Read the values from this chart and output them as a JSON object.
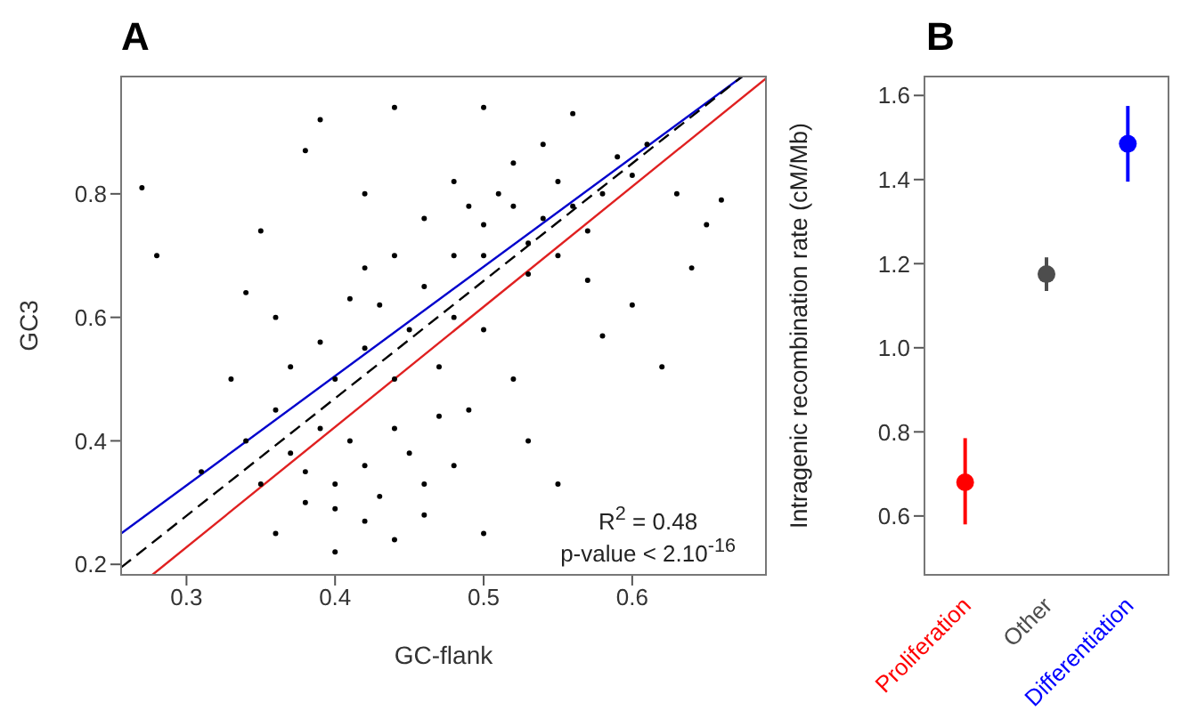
{
  "chart_data": [
    {
      "type": "scatter",
      "title": "A",
      "xlabel": "GC-flank",
      "ylabel": "GC3",
      "xlim": [
        0.256,
        0.69
      ],
      "ylim": [
        0.183,
        0.99
      ],
      "xticks": [
        0.3,
        0.4,
        0.5,
        0.6
      ],
      "yticks": [
        0.2,
        0.4,
        0.6,
        0.8
      ],
      "grid": false,
      "legend": false,
      "marker": "circle",
      "annotations": [
        "R$^{2}$ = 0.48",
        "p-value < 2.10$^{-16}$"
      ],
      "series": [
        {
          "color": "#000000",
          "x": [
            0.38,
            0.4,
            0.42,
            0.41,
            0.39,
            0.43,
            0.4,
            0.37,
            0.36,
            0.44,
            0.45,
            0.38,
            0.42,
            0.46,
            0.35,
            0.4,
            0.42,
            0.44,
            0.45,
            0.47,
            0.43,
            0.46,
            0.48,
            0.5,
            0.39,
            0.37,
            0.41,
            0.49,
            0.52,
            0.47,
            0.48,
            0.44,
            0.42,
            0.5,
            0.52,
            0.54,
            0.53,
            0.51,
            0.55,
            0.56,
            0.5,
            0.53,
            0.57,
            0.49,
            0.58,
            0.55,
            0.52,
            0.48,
            0.59,
            0.6,
            0.57,
            0.54,
            0.46,
            0.27,
            0.28,
            0.34,
            0.35,
            0.33,
            0.34,
            0.31,
            0.36,
            0.4,
            0.44,
            0.5,
            0.55,
            0.58,
            0.62,
            0.63,
            0.65,
            0.66,
            0.64,
            0.61,
            0.56,
            0.5,
            0.44,
            0.39,
            0.38,
            0.42,
            0.36,
            0.6,
            0.53,
            0.48,
            0.46
          ],
          "values": [
            0.35,
            0.33,
            0.36,
            0.4,
            0.42,
            0.31,
            0.29,
            0.38,
            0.45,
            0.42,
            0.38,
            0.3,
            0.27,
            0.33,
            0.33,
            0.5,
            0.55,
            0.5,
            0.58,
            0.52,
            0.62,
            0.65,
            0.6,
            0.58,
            0.56,
            0.52,
            0.63,
            0.45,
            0.5,
            0.44,
            0.7,
            0.7,
            0.68,
            0.75,
            0.78,
            0.76,
            0.72,
            0.8,
            0.82,
            0.78,
            0.7,
            0.67,
            0.74,
            0.78,
            0.8,
            0.7,
            0.85,
            0.82,
            0.86,
            0.83,
            0.66,
            0.88,
            0.76,
            0.81,
            0.7,
            0.64,
            0.74,
            0.5,
            0.4,
            0.35,
            0.25,
            0.22,
            0.24,
            0.25,
            0.33,
            0.57,
            0.52,
            0.8,
            0.75,
            0.79,
            0.68,
            0.88,
            0.93,
            0.94,
            0.94,
            0.92,
            0.87,
            0.8,
            0.6,
            0.62,
            0.4,
            0.36,
            0.28
          ]
        },
        {
          "type": "line",
          "marker": "none",
          "color": "#0000cc",
          "line_style": "solid",
          "x": [
            0.256,
            0.674
          ],
          "values": [
            0.25,
            0.99
          ]
        },
        {
          "type": "line",
          "marker": "none",
          "color": "#000000",
          "line_style": "dashed",
          "x": [
            0.256,
            0.674
          ],
          "values": [
            0.195,
            0.99
          ]
        },
        {
          "type": "line",
          "marker": "none",
          "color": "#e02020",
          "line_style": "solid",
          "x": [
            0.277,
            0.69
          ],
          "values": [
            0.183,
            0.987
          ]
        }
      ]
    },
    {
      "type": "scatter",
      "title": "B",
      "ylabel": "Intragenic recombination rate (cM/Mb)",
      "categories": [
        "Proliferation",
        "Other",
        "Differentiation"
      ],
      "values": [
        0.68,
        1.175,
        1.485
      ],
      "colors": [
        "#ff0000",
        "#4d4d4d",
        "#0000ff"
      ],
      "errors": [
        [
          0.58,
          0.785
        ],
        [
          1.135,
          1.215
        ],
        [
          1.395,
          1.575
        ]
      ],
      "ylim": [
        0.46,
        1.645
      ],
      "yticks": [
        {
          "value": 0.6,
          "label": "0.6"
        },
        {
          "value": 0.8,
          "label": "0.8"
        },
        {
          "value": 1.0,
          "label": "1.0"
        },
        {
          "value": 1.2,
          "label": "1.2"
        },
        {
          "value": 1.4,
          "label": "1.4"
        },
        {
          "value": 1.6,
          "label": "1.6"
        }
      ],
      "grid": false,
      "legend": false,
      "marker": "circle"
    }
  ]
}
